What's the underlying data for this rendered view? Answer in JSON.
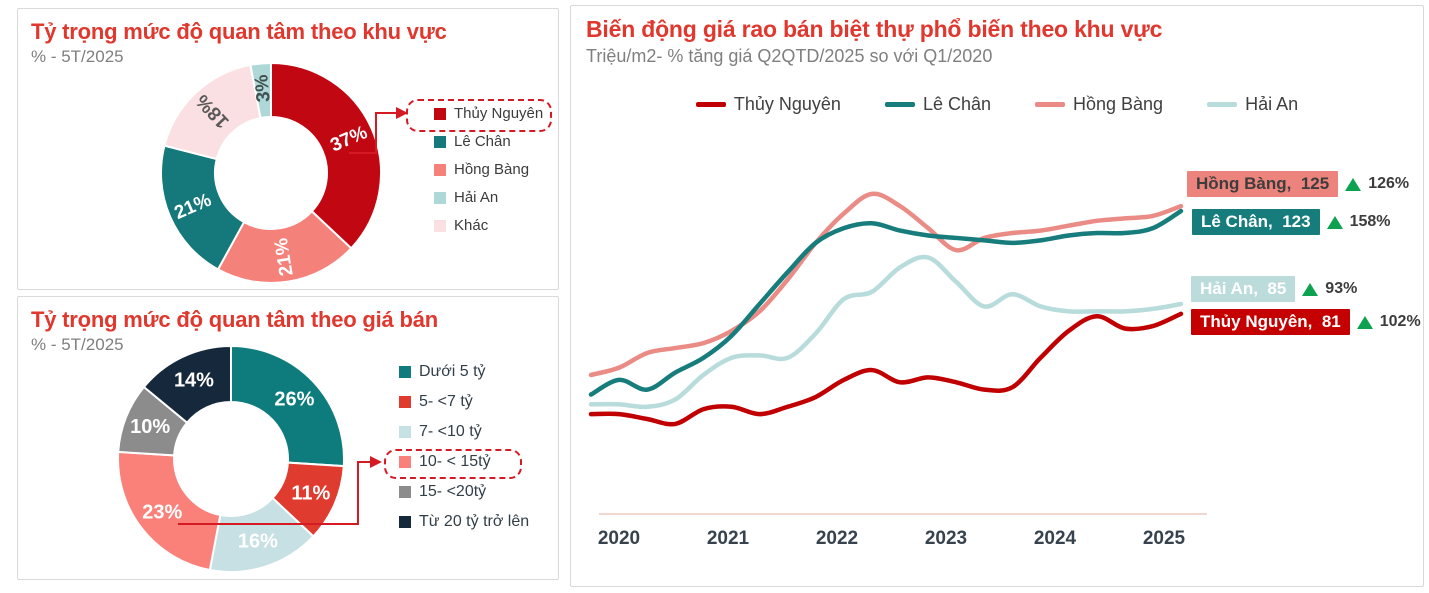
{
  "chart_data": [
    {
      "type": "donut",
      "title": "Tỷ trọng mức độ quan tâm theo khu vực",
      "subtitle": "% - 5T/2025",
      "unit": "%",
      "slices": [
        {
          "label": "Thủy Nguyên",
          "value": 37,
          "color": "#c00712",
          "label_color": "#ffffff",
          "rotate_labels": true
        },
        {
          "label": "Hồng Bàng",
          "value": 21,
          "color": "#f5827a",
          "label_color": "#ffffff"
        },
        {
          "label": "Lê Chân",
          "value": 21,
          "color": "#15787a",
          "label_color": "#ffffff"
        },
        {
          "label": "Khác",
          "value": 18,
          "color": "#fbe0e3",
          "label_color": "#595959"
        },
        {
          "label": "Hải An",
          "value": 3,
          "color": "#aed8d8",
          "label_color": "#41504f"
        }
      ],
      "legend": [
        {
          "label": "Thủy Nguyên",
          "color": "#c00712",
          "highlighted": true
        },
        {
          "label": "Lê Chân",
          "color": "#15787a"
        },
        {
          "label": "Hồng Bàng",
          "color": "#f5827a"
        },
        {
          "label": "Hải An",
          "color": "#aed8d8"
        },
        {
          "label": "Khác",
          "color": "#fbe0e3"
        }
      ]
    },
    {
      "type": "donut",
      "title": "Tỷ trọng mức độ quan tâm theo giá bán",
      "subtitle": "% - 5T/2025",
      "unit": "%",
      "slices": [
        {
          "label": "Dưới 5 tỷ",
          "value": 26,
          "color": "#0e7c7c",
          "label_color": "#ffffff"
        },
        {
          "label": "5- <7 tỷ",
          "value": 11,
          "color": "#e03b2f",
          "label_color": "#ffffff"
        },
        {
          "label": "7- <10 tỷ",
          "value": 16,
          "color": "#c6e0e3",
          "label_color": "#ffffff"
        },
        {
          "label": "10- < 15tỷ",
          "value": 23,
          "color": "#fa807a",
          "label_color": "#ffffff"
        },
        {
          "label": "15- <20tỷ",
          "value": 10,
          "color": "#8c8c8c",
          "label_color": "#ffffff"
        },
        {
          "label": "Từ 20 tỷ trở lên",
          "value": 14,
          "color": "#16293c",
          "label_color": "#ffffff"
        }
      ],
      "legend": [
        {
          "label": "Dưới 5 tỷ",
          "color": "#0e7c7c"
        },
        {
          "label": "5- <7 tỷ",
          "color": "#e03b2f"
        },
        {
          "label": "7- <10 tỷ",
          "color": "#c6e0e3"
        },
        {
          "label": "10- < 15tỷ",
          "color": "#fa807a",
          "highlighted": true
        },
        {
          "label": "15- <20tỷ",
          "color": "#8c8c8c"
        },
        {
          "label": "Từ 20 tỷ trở lên",
          "color": "#16293c"
        }
      ]
    },
    {
      "type": "line",
      "title": "Biến động giá rao bán biệt thự phổ biến theo khu vực",
      "subtitle": "Triệu/m2- % tăng giá Q2QTD/2025 so với Q1/2020",
      "x_tick_labels": [
        "2020",
        "2021",
        "2022",
        "2023",
        "2024",
        "2025"
      ],
      "ylim": [
        0,
        210
      ],
      "grid": false,
      "legend_position": "top",
      "series": [
        {
          "name": "Hải An",
          "color": "#b7dcdb",
          "values": [
            44,
            44,
            43,
            46,
            56,
            63,
            64,
            63,
            73,
            87,
            90,
            100,
            104,
            94,
            84,
            89,
            84,
            82,
            82,
            82,
            83,
            85
          ]
        },
        {
          "name": "Hồng Bàng",
          "color": "#ea8c85",
          "values": [
            56,
            59,
            65,
            67,
            69,
            74,
            82,
            95,
            110,
            122,
            130,
            125,
            116,
            107,
            112,
            114,
            115,
            117,
            119,
            120,
            121,
            125
          ]
        },
        {
          "name": "Lê Chân",
          "color": "#177c7c",
          "values": [
            48,
            54,
            50,
            57,
            63,
            72,
            85,
            98,
            110,
            116,
            118,
            115,
            113,
            112,
            111,
            110,
            111,
            113,
            114,
            114,
            116,
            123
          ]
        },
        {
          "name": "Thủy Nguyên",
          "color": "#c00000",
          "values": [
            40,
            40,
            38,
            36,
            42,
            43,
            40,
            43,
            47,
            54,
            58,
            53,
            55,
            53,
            50,
            51,
            63,
            74,
            80,
            75,
            76,
            81
          ]
        }
      ],
      "legend": [
        {
          "label": "Thủy Nguyên",
          "color": "#c00000"
        },
        {
          "label": "Lê Chân",
          "color": "#177c7c"
        },
        {
          "label": "Hồng Bàng",
          "color": "#ea8c85"
        },
        {
          "label": "Hải An",
          "color": "#b7dcdb"
        }
      ],
      "annotations": [
        {
          "name": "Hồng Bàng",
          "value": 125,
          "change": "126%",
          "bg": "#ec837c",
          "text_color": "#3d3d3d"
        },
        {
          "name": "Lê Chân",
          "value": 123,
          "change": "158%",
          "bg": "#177c7c",
          "text_color": "#ffffff"
        },
        {
          "name": "Hải An",
          "value": 85,
          "change": "93%",
          "bg": "#bcdcdc",
          "text_color": "#ffffff"
        },
        {
          "name": "Thủy Nguyên",
          "value": 81,
          "change": "102%",
          "bg": "#c40000",
          "text_color": "#ffffff"
        }
      ],
      "up_arrow_color": "#0da24f"
    }
  ]
}
